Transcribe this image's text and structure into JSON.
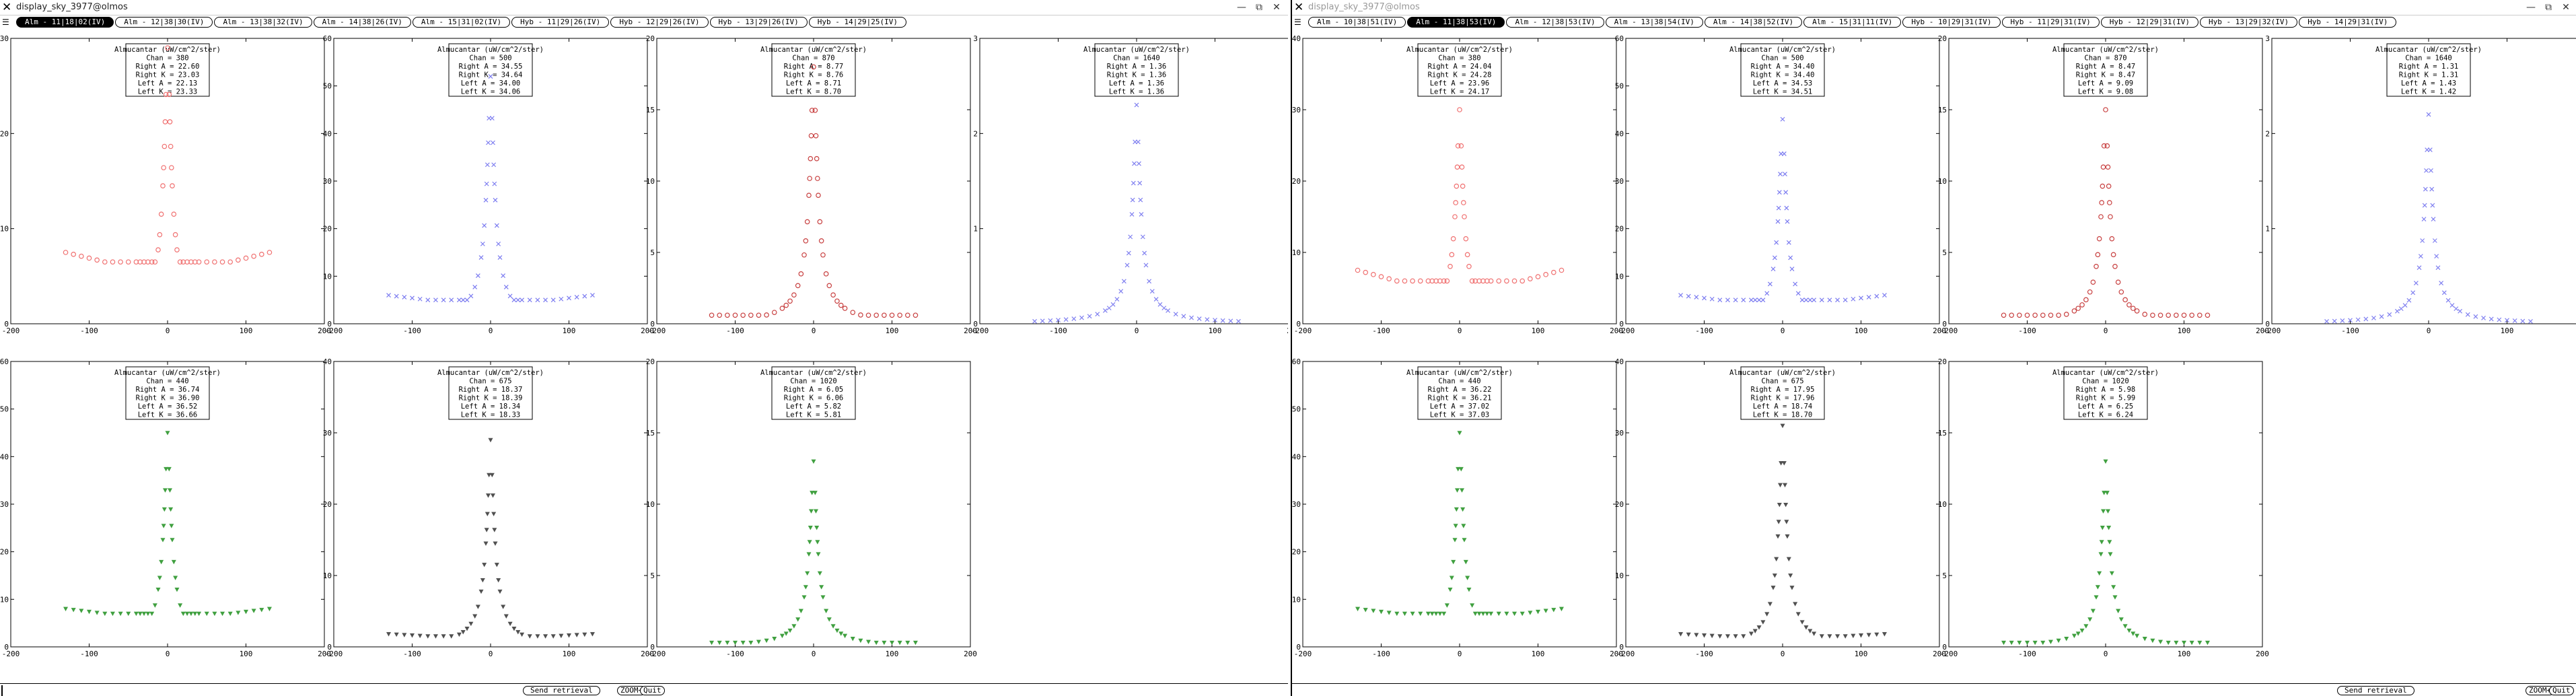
{
  "windows": [
    {
      "id": "left",
      "title": "display_sky_3977@olmos",
      "controls": [
        "—",
        "⧉",
        "✕"
      ],
      "tabs": [
        "Alm - 11|18|02(IV)",
        "Alm - 12|38|30(IV)",
        "Alm - 13|38|32(IV)",
        "Alm - 14|38|26(IV)",
        "Alm - 15|31|02(IV)",
        "Hyb - 11|29|26(IV)",
        "Hyb - 12|29|26(IV)",
        "Hyb - 13|29|26(IV)",
        "Hyb - 14|29|25(IV)"
      ],
      "active_tab": 0,
      "buttons": {
        "send": "Send retrieval",
        "zoom": "ZOOM+",
        "quit": "Quit"
      }
    },
    {
      "id": "right",
      "title": "display_sky_3977@olmos",
      "controls": [
        "—",
        "⧉",
        "✕"
      ],
      "tabs": [
        "Alm - 10|38|51(IV)",
        "Alm - 11|38|53(IV)",
        "Alm - 12|38|53(IV)",
        "Alm - 13|38|54(IV)",
        "Alm - 14|38|52(IV)",
        "Alm - 15|31|11(IV)",
        "Hyb - 10|29|31(IV)",
        "Hyb - 11|29|31(IV)",
        "Hyb - 12|29|31(IV)",
        "Hyb - 13|29|32(IV)",
        "Hyb - 14|29|31(IV)"
      ],
      "active_tab": 1,
      "buttons": {
        "send": "Send retrieval",
        "zoom": "ZOOM+",
        "quit": "Quit"
      }
    }
  ],
  "chart_data": [
    {
      "type": "scatter",
      "window": "left",
      "chan": 380,
      "color": "#f07070",
      "marker": "circle",
      "legend": [
        "Almucantar (uW/cm^2/ster)",
        "Chan = 380",
        "Right A = 22.60",
        "Right K = 23.03",
        "Left A = 22.13",
        "Left K = 23.33"
      ],
      "xlim": [
        -200,
        200
      ],
      "ylim": [
        0,
        30
      ],
      "xticks": [
        -200,
        -100,
        0,
        100,
        200
      ],
      "yticks": [
        0,
        10,
        20,
        30
      ],
      "peak": 29,
      "base": 6.5,
      "edge": 7.5
    },
    {
      "type": "scatter",
      "window": "left",
      "chan": 500,
      "color": "#7b7bf0",
      "marker": "x",
      "legend": [
        "Almucantar (uW/cm^2/ster)",
        "Chan = 500",
        "Right A = 34.55",
        "Right K = 34.64",
        "Left A = 34.00",
        "Left K = 34.06"
      ],
      "xlim": [
        -200,
        200
      ],
      "ylim": [
        0,
        60
      ],
      "xticks": [
        -200,
        -100,
        0,
        100,
        200
      ],
      "yticks": [
        0,
        10,
        20,
        30,
        40,
        50,
        60
      ],
      "peak": 52,
      "base": 5,
      "edge": 6
    },
    {
      "type": "scatter",
      "window": "left",
      "chan": 870,
      "color": "#c84040",
      "marker": "circle",
      "legend": [
        "Almucantar (uW/cm^2/ster)",
        "Chan = 870",
        "Right A = 8.77",
        "Right K = 8.76",
        "Left A = 8.71",
        "Left K = 8.70"
      ],
      "xlim": [
        -200,
        200
      ],
      "ylim": [
        0,
        20
      ],
      "xticks": [
        -200,
        -100,
        0,
        100,
        200
      ],
      "yticks": [
        0,
        5,
        10,
        15,
        20
      ],
      "peak": 18,
      "base": 0.6,
      "edge": 0.6
    },
    {
      "type": "scatter",
      "window": "left",
      "chan": 1640,
      "color": "#8080f0",
      "marker": "x",
      "legend": [
        "Almucantar (uW/cm^2/ster)",
        "Chan = 1640",
        "Right A = 1.36",
        "Right K = 1.36",
        "Left A = 1.36",
        "Left K = 1.36"
      ],
      "xlim": [
        -200,
        200
      ],
      "ylim": [
        0,
        3
      ],
      "xticks": [
        -200,
        -100,
        0,
        100,
        200
      ],
      "yticks": [
        0,
        1,
        2,
        3
      ],
      "peak": 2.3,
      "base": 0.02,
      "edge": 0.02
    },
    {
      "type": "scatter",
      "window": "left",
      "chan": 440,
      "color": "#40a040",
      "marker": "tri",
      "legend": [
        "Almucantar (uW/cm^2/ster)",
        "Chan = 440",
        "Right A = 36.74",
        "Right K = 36.90",
        "Left A = 36.52",
        "Left K = 36.66"
      ],
      "xlim": [
        -200,
        200
      ],
      "ylim": [
        0,
        60
      ],
      "xticks": [
        -200,
        -100,
        0,
        100,
        200
      ],
      "yticks": [
        0,
        10,
        20,
        30,
        40,
        50,
        60
      ],
      "peak": 45,
      "base": 7,
      "edge": 8
    },
    {
      "type": "scatter",
      "window": "left",
      "chan": 675,
      "color": "#505050",
      "marker": "tri",
      "legend": [
        "Almucantar (uW/cm^2/ster)",
        "Chan = 675",
        "Right A = 18.37",
        "Right K = 18.39",
        "Left A = 18.34",
        "Left K = 18.33"
      ],
      "xlim": [
        -200,
        200
      ],
      "ylim": [
        0,
        40
      ],
      "xticks": [
        -200,
        -100,
        0,
        100,
        200
      ],
      "yticks": [
        0,
        10,
        20,
        30,
        40
      ],
      "peak": 29,
      "base": 1.5,
      "edge": 1.8
    },
    {
      "type": "scatter",
      "window": "left",
      "chan": 1020,
      "color": "#40a040",
      "marker": "tri",
      "legend": [
        "Almucantar (uW/cm^2/ster)",
        "Chan = 1020",
        "Right A = 6.05",
        "Right K = 6.06",
        "Left A = 5.82",
        "Left K = 5.81"
      ],
      "xlim": [
        -200,
        200
      ],
      "ylim": [
        0,
        20
      ],
      "xticks": [
        -200,
        -100,
        0,
        100,
        200
      ],
      "yticks": [
        0,
        5,
        10,
        15,
        20
      ],
      "peak": 13,
      "base": 0.3,
      "edge": 0.3
    },
    {
      "type": "scatter",
      "window": "right",
      "chan": 380,
      "color": "#f07070",
      "marker": "circle",
      "legend": [
        "Almucantar (uW/cm^2/ster)",
        "Chan = 380",
        "Right A = 24.04",
        "Right K = 24.28",
        "Left A = 23.96",
        "Left K = 24.17"
      ],
      "xlim": [
        -200,
        200
      ],
      "ylim": [
        0,
        40
      ],
      "xticks": [
        -200,
        -100,
        0,
        100,
        200
      ],
      "yticks": [
        0,
        10,
        20,
        30,
        40
      ],
      "peak": 30,
      "base": 6,
      "edge": 7.5
    },
    {
      "type": "scatter",
      "window": "right",
      "chan": 500,
      "color": "#7b7bf0",
      "marker": "x",
      "legend": [
        "Almucantar (uW/cm^2/ster)",
        "Chan = 500",
        "Right A = 34.40",
        "Right K = 34.40",
        "Left A = 34.53",
        "Left K = 34.51"
      ],
      "xlim": [
        -200,
        200
      ],
      "ylim": [
        0,
        60
      ],
      "xticks": [
        -200,
        -100,
        0,
        100,
        200
      ],
      "yticks": [
        0,
        10,
        20,
        30,
        40,
        50,
        60
      ],
      "peak": 43,
      "base": 5,
      "edge": 6
    },
    {
      "type": "scatter",
      "window": "right",
      "chan": 870,
      "color": "#c84040",
      "marker": "circle",
      "legend": [
        "Almucantar (uW/cm^2/ster)",
        "Chan = 870",
        "Right A = 8.47",
        "Right K = 8.47",
        "Left A = 9.09",
        "Left K = 9.08"
      ],
      "xlim": [
        -200,
        200
      ],
      "ylim": [
        0,
        20
      ],
      "xticks": [
        -200,
        -100,
        0,
        100,
        200
      ],
      "yticks": [
        0,
        5,
        10,
        15,
        20
      ],
      "peak": 15,
      "base": 0.6,
      "edge": 0.6
    },
    {
      "type": "scatter",
      "window": "right",
      "chan": 1640,
      "color": "#8080f0",
      "marker": "x",
      "legend": [
        "Almucantar (uW/cm^2/ster)",
        "Chan = 1640",
        "Right A = 1.31",
        "Right K = 1.31",
        "Left A = 1.43",
        "Left K = 1.42"
      ],
      "xlim": [
        -200,
        200
      ],
      "ylim": [
        0,
        3
      ],
      "xticks": [
        -200,
        -100,
        0,
        100,
        200
      ],
      "yticks": [
        0,
        1,
        2,
        3
      ],
      "peak": 2.2,
      "base": 0.02,
      "edge": 0.02
    },
    {
      "type": "scatter",
      "window": "right",
      "chan": 440,
      "color": "#40a040",
      "marker": "tri",
      "legend": [
        "Almucantar (uW/cm^2/ster)",
        "Chan = 440",
        "Right A = 36.22",
        "Right K = 36.21",
        "Left A = 37.02",
        "Left K = 37.03"
      ],
      "xlim": [
        -200,
        200
      ],
      "ylim": [
        0,
        60
      ],
      "xticks": [
        -200,
        -100,
        0,
        100,
        200
      ],
      "yticks": [
        0,
        10,
        20,
        30,
        40,
        50,
        60
      ],
      "peak": 45,
      "base": 7,
      "edge": 8
    },
    {
      "type": "scatter",
      "window": "right",
      "chan": 675,
      "color": "#505050",
      "marker": "tri",
      "legend": [
        "Almucantar (uW/cm^2/ster)",
        "Chan = 675",
        "Right A = 17.95",
        "Right K = 17.96",
        "Left A = 18.74",
        "Left K = 18.70"
      ],
      "xlim": [
        -200,
        200
      ],
      "ylim": [
        0,
        40
      ],
      "xticks": [
        -200,
        -100,
        0,
        100,
        200
      ],
      "yticks": [
        0,
        10,
        20,
        30,
        40
      ],
      "peak": 31,
      "base": 1.5,
      "edge": 1.8
    },
    {
      "type": "scatter",
      "window": "right",
      "chan": 1020,
      "color": "#40a040",
      "marker": "tri",
      "legend": [
        "Almucantar (uW/cm^2/ster)",
        "Chan = 1020",
        "Right A = 5.98",
        "Right K = 5.99",
        "Left A = 6.25",
        "Left K = 6.24"
      ],
      "xlim": [
        -200,
        200
      ],
      "ylim": [
        0,
        20
      ],
      "xticks": [
        -200,
        -100,
        0,
        100,
        200
      ],
      "yticks": [
        0,
        5,
        10,
        15,
        20
      ],
      "peak": 13,
      "base": 0.3,
      "edge": 0.3
    }
  ]
}
